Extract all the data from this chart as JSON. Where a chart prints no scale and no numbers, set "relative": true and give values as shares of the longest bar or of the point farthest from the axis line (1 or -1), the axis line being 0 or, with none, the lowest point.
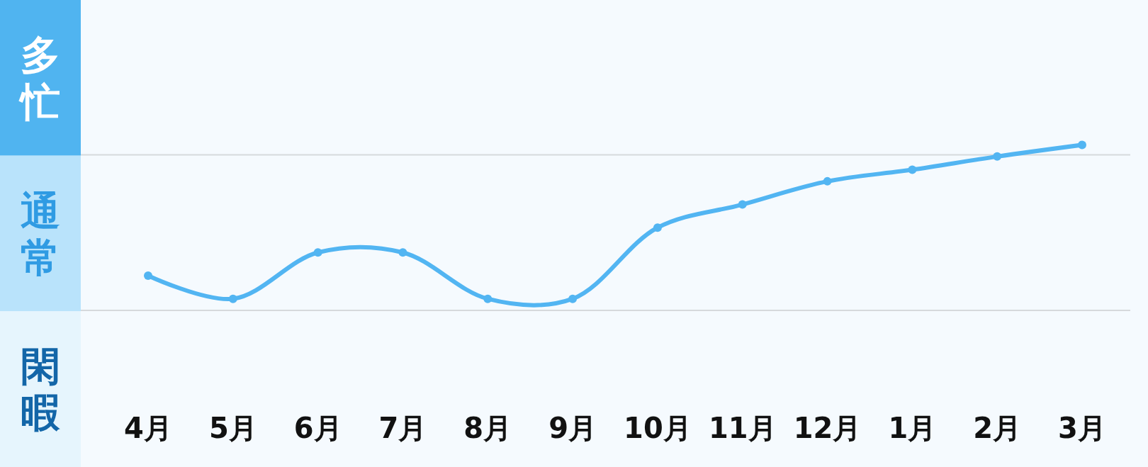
{
  "chart_data": {
    "type": "line",
    "relative": true,
    "categories": [
      "4月",
      "5月",
      "6月",
      "7月",
      "8月",
      "9月",
      "10月",
      "11月",
      "12月",
      "1月",
      "2月",
      "3月"
    ],
    "series": [
      {
        "color": "#52b5f2",
        "values": [
          0.21,
          0.07,
          0.35,
          0.35,
          0.07,
          0.07,
          0.5,
          0.64,
          0.78,
          0.85,
          0.93,
          1
        ]
      }
    ],
    "marker": "circle",
    "ref_lines": [
      {
        "axis": "y",
        "value": 0.94,
        "color": "#d6d9dc"
      }
    ],
    "annotations": [
      "多忙",
      "通常",
      "閑暇"
    ]
  }
}
